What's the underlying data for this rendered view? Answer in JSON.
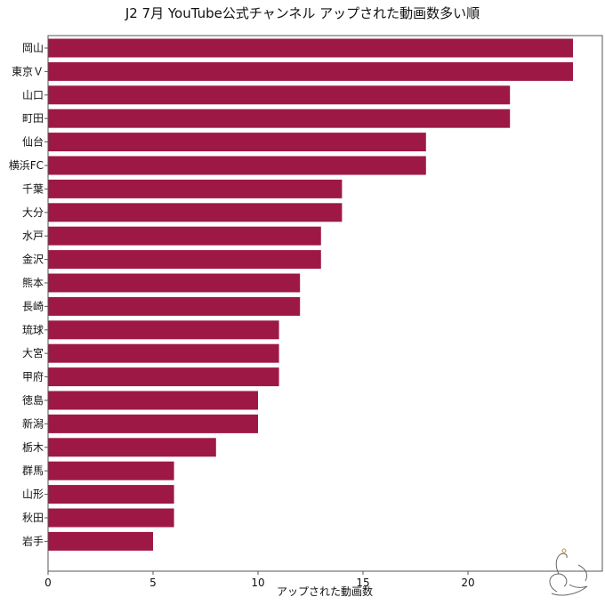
{
  "chart_data": {
    "type": "bar",
    "orientation": "horizontal",
    "title": "J2 7月 YouTube公式チャンネル アップされた動画数多い順",
    "xlabel": "アップされた動画数",
    "ylabel": "",
    "xlim": [
      0,
      25
    ],
    "xticks": [
      "0",
      "5",
      "10",
      "15",
      "20"
    ],
    "grid": false,
    "legend": "none",
    "bar_color": "#9e1846",
    "categories": [
      "岡山",
      "東京Ｖ",
      "山口",
      "町田",
      "仙台",
      "横浜FC",
      "千葉",
      "大分",
      "水戸",
      "金沢",
      "熊本",
      "長崎",
      "琉球",
      "大宮",
      "甲府",
      "徳島",
      "新潟",
      "栃木",
      "群馬",
      "山形",
      "秋田",
      "岩手"
    ],
    "values": [
      25,
      25,
      22,
      22,
      18,
      18,
      14,
      14,
      13,
      13,
      12,
      12,
      11,
      11,
      11,
      10,
      10,
      8,
      6,
      6,
      6,
      5
    ]
  }
}
